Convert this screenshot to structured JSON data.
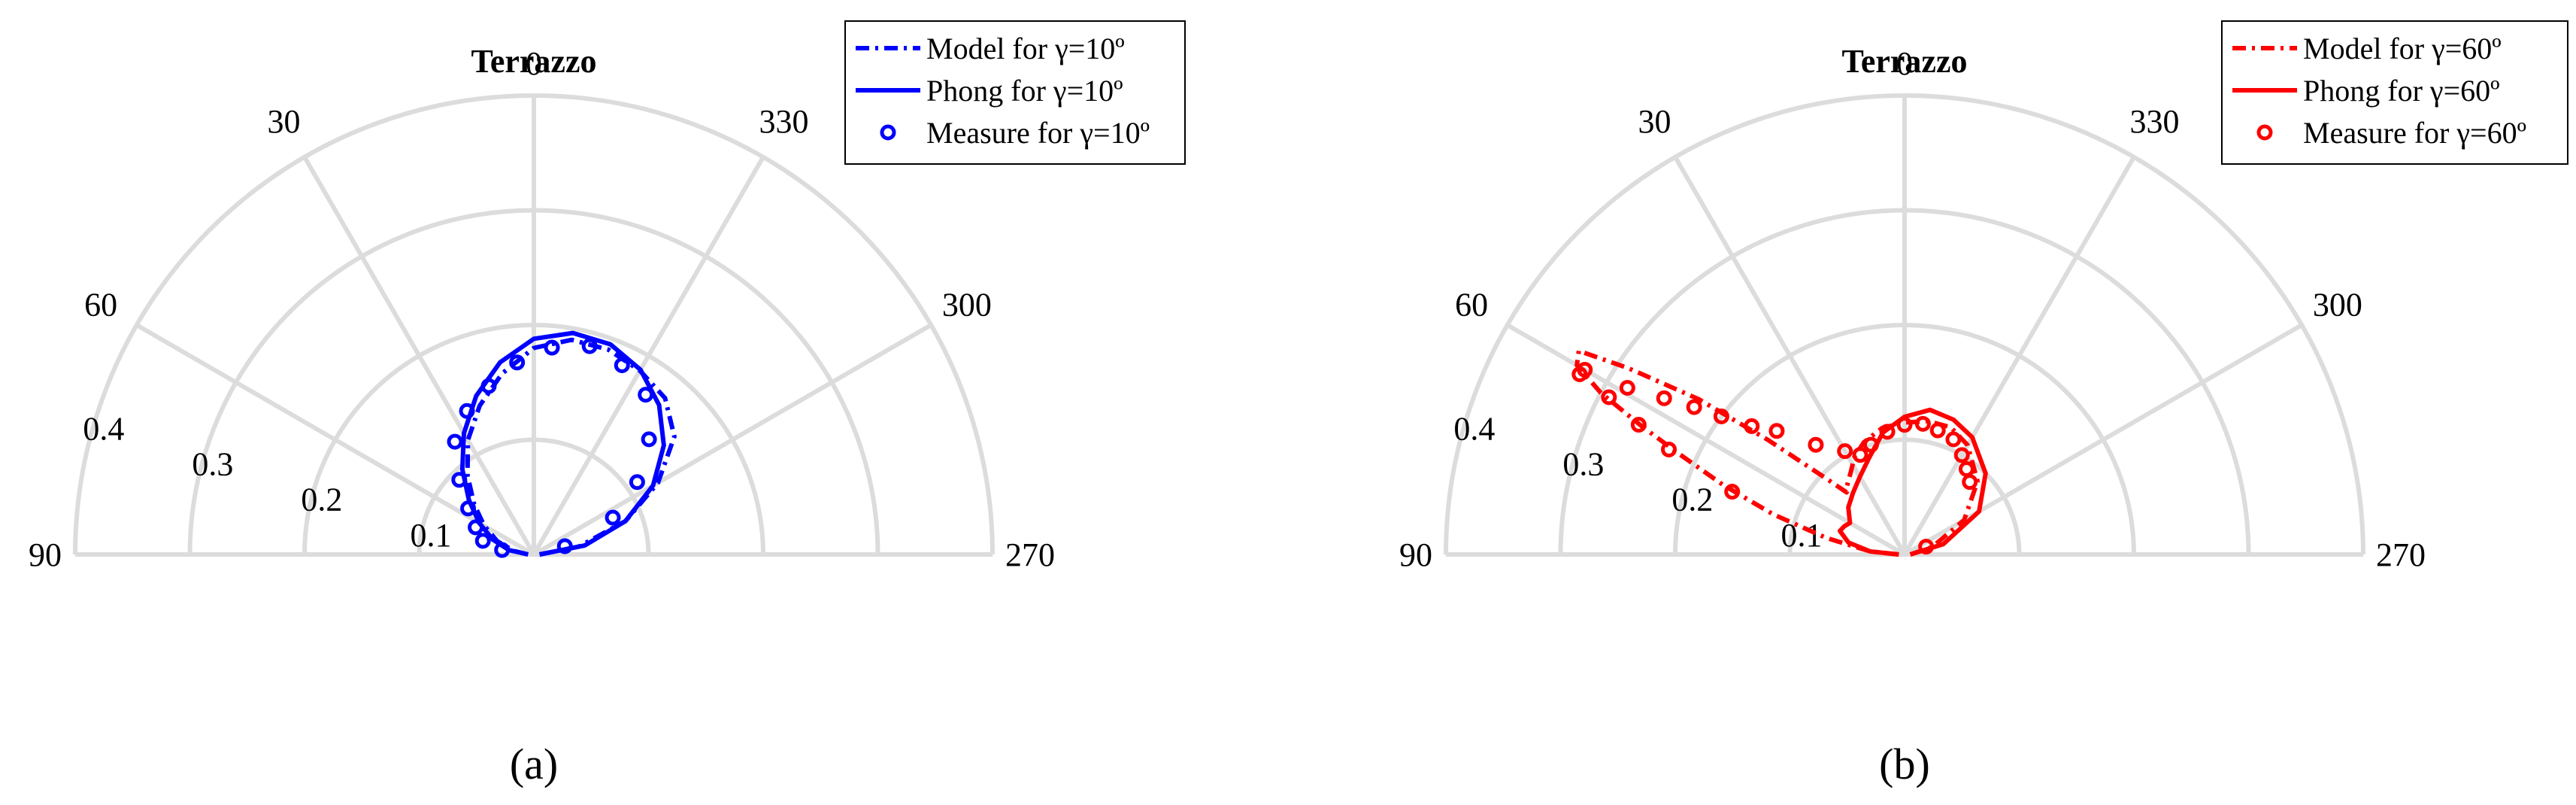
{
  "chart_data": [
    {
      "type": "polar",
      "panel": "a",
      "caption": "(a)",
      "title": "Terrazzo",
      "angle_ticks": [
        "0",
        "30",
        "330",
        "60",
        "300",
        "90",
        "270"
      ],
      "radial_ticks": [
        "0.4",
        "0.3",
        "0.2",
        "0.1"
      ],
      "rlim": [
        0,
        0.4
      ],
      "color": "#0000ff",
      "series": [
        {
          "name": "Model for γ=10º",
          "style": "dash-dot",
          "points": [
            [
              -90,
              0.005
            ],
            [
              -80,
              0.04
            ],
            [
              -70,
              0.085
            ],
            [
              -60,
              0.125
            ],
            [
              -50,
              0.16
            ],
            [
              -40,
              0.178
            ],
            [
              -30,
              0.185
            ],
            [
              -20,
              0.19
            ],
            [
              -10,
              0.19
            ],
            [
              0,
              0.18
            ],
            [
              10,
              0.16
            ],
            [
              20,
              0.138
            ],
            [
              30,
              0.115
            ],
            [
              40,
              0.09
            ],
            [
              50,
              0.068
            ],
            [
              60,
              0.05
            ],
            [
              70,
              0.034
            ],
            [
              80,
              0.018
            ],
            [
              90,
              0.005
            ]
          ]
        },
        {
          "name": "Phong for γ=10º",
          "style": "solid",
          "points": [
            [
              -90,
              0.005
            ],
            [
              -80,
              0.045
            ],
            [
              -70,
              0.085
            ],
            [
              -60,
              0.12
            ],
            [
              -50,
              0.148
            ],
            [
              -40,
              0.17
            ],
            [
              -30,
              0.186
            ],
            [
              -20,
              0.195
            ],
            [
              -10,
              0.196
            ],
            [
              0,
              0.188
            ],
            [
              10,
              0.17
            ],
            [
              20,
              0.147
            ],
            [
              30,
              0.122
            ],
            [
              40,
              0.097
            ],
            [
              50,
              0.074
            ],
            [
              60,
              0.055
            ],
            [
              70,
              0.038
            ],
            [
              80,
              0.022
            ],
            [
              90,
              0.005
            ]
          ]
        },
        {
          "name": "Measure for γ=10º",
          "style": "markers",
          "points": [
            [
              -75,
              0.028
            ],
            [
              -65,
              0.076
            ],
            [
              -55,
              0.11
            ],
            [
              -45,
              0.142
            ],
            [
              -35,
              0.17
            ],
            [
              -25,
              0.182
            ],
            [
              -15,
              0.188
            ],
            [
              -5,
              0.181
            ],
            [
              5,
              0.168
            ],
            [
              15,
              0.152
            ],
            [
              25,
              0.138
            ],
            [
              35,
              0.12
            ],
            [
              45,
              0.092
            ],
            [
              55,
              0.07
            ],
            [
              65,
              0.056
            ],
            [
              75,
              0.046
            ],
            [
              82,
              0.028
            ]
          ]
        }
      ]
    },
    {
      "type": "polar",
      "panel": "b",
      "caption": "(b)",
      "title": "Terrazzo",
      "angle_ticks": [
        "0",
        "30",
        "330",
        "60",
        "300",
        "90",
        "270"
      ],
      "radial_ticks": [
        "0.4",
        "0.3",
        "0.2",
        "0.1"
      ],
      "rlim": [
        0,
        0.4
      ],
      "color": "#ff0000",
      "series": [
        {
          "name": "Model for γ=60º",
          "style": "dash-dot",
          "points": [
            [
              -90,
              0.005
            ],
            [
              -75,
              0.025
            ],
            [
              -60,
              0.06
            ],
            [
              -45,
              0.09
            ],
            [
              -30,
              0.11
            ],
            [
              -20,
              0.118
            ],
            [
              -10,
              0.118
            ],
            [
              0,
              0.115
            ],
            [
              10,
              0.112
            ],
            [
              20,
              0.104
            ],
            [
              27,
              0.096
            ],
            [
              33,
              0.086
            ],
            [
              40,
              0.078
            ],
            [
              43,
              0.074
            ],
            [
              46,
              0.096
            ],
            [
              50,
              0.155
            ],
            [
              53,
              0.225
            ],
            [
              56,
              0.29
            ],
            [
              58,
              0.335
            ],
            [
              60,
              0.33
            ],
            [
              62,
              0.3
            ],
            [
              64,
              0.255
            ],
            [
              66,
              0.215
            ],
            [
              69,
              0.17
            ],
            [
              73,
              0.12
            ],
            [
              78,
              0.07
            ],
            [
              85,
              0.03
            ],
            [
              90,
              0.005
            ]
          ]
        },
        {
          "name": "Phong for γ=60º",
          "style": "solid",
          "points": [
            [
              -90,
              0.005
            ],
            [
              -75,
              0.035
            ],
            [
              -60,
              0.075
            ],
            [
              -45,
              0.1
            ],
            [
              -30,
              0.118
            ],
            [
              -20,
              0.125
            ],
            [
              -10,
              0.128
            ],
            [
              0,
              0.12
            ],
            [
              10,
              0.108
            ],
            [
              20,
              0.09
            ],
            [
              30,
              0.078
            ],
            [
              40,
              0.07
            ],
            [
              50,
              0.064
            ],
            [
              60,
              0.055
            ],
            [
              65,
              0.058
            ],
            [
              70,
              0.06
            ],
            [
              78,
              0.05
            ],
            [
              85,
              0.03
            ],
            [
              90,
              0.005
            ]
          ]
        },
        {
          "name": "Measure for γ=60º",
          "style": "markers",
          "points": [
            [
              -70,
              0.02
            ],
            [
              -42,
              0.085
            ],
            [
              -36,
              0.092
            ],
            [
              -30,
              0.1
            ],
            [
              -23,
              0.109
            ],
            [
              -15,
              0.112
            ],
            [
              -8,
              0.115
            ],
            [
              0,
              0.113
            ],
            [
              8,
              0.108
            ],
            [
              17,
              0.1
            ],
            [
              24,
              0.095
            ],
            [
              30,
              0.104
            ],
            [
              39,
              0.123
            ],
            [
              46,
              0.155
            ],
            [
              50,
              0.174
            ],
            [
              53,
              0.2
            ],
            [
              55,
              0.224
            ],
            [
              57,
              0.25
            ],
            [
              59,
              0.282
            ],
            [
              60,
              0.322
            ],
            [
              61,
              0.324
            ],
            [
              62,
              0.292
            ],
            [
              64,
              0.258
            ],
            [
              66,
              0.225
            ],
            [
              70,
              0.16
            ]
          ]
        }
      ]
    }
  ]
}
